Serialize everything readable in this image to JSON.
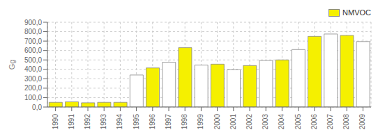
{
  "chart_data": {
    "type": "bar",
    "ylabel": "Gg",
    "categories": [
      "1990",
      "1991",
      "1992",
      "1993",
      "1994",
      "1995",
      "1996",
      "1997",
      "1998",
      "1999",
      "2000",
      "2001",
      "2002",
      "2003",
      "2004",
      "2005",
      "2006",
      "2007",
      "2008",
      "2009"
    ],
    "series": [
      {
        "name": "NMVOC",
        "color": "#f5f000",
        "values": [
          50,
          55,
          45,
          50,
          50,
          340,
          415,
          475,
          630,
          445,
          455,
          395,
          440,
          495,
          500,
          610,
          750,
          775,
          760,
          695
        ],
        "colors": [
          "#f5f000",
          "#f5f000",
          "#f5f000",
          "#f5f000",
          "#f5f000",
          "#ffffff",
          "#f5f000",
          "#ffffff",
          "#f5f000",
          "#ffffff",
          "#f5f000",
          "#ffffff",
          "#f5f000",
          "#ffffff",
          "#f5f000",
          "#ffffff",
          "#f5f000",
          "#ffffff",
          "#f5f000",
          "#ffffff"
        ]
      }
    ],
    "ylim": [
      0,
      900
    ],
    "yticks": [
      {
        "value": 0,
        "label": "0,0"
      },
      {
        "value": 100,
        "label": "100,0"
      },
      {
        "value": 200,
        "label": "200,0"
      },
      {
        "value": 300,
        "label": "300,0"
      },
      {
        "value": 400,
        "label": "400,0"
      },
      {
        "value": 500,
        "label": "500,0"
      },
      {
        "value": 600,
        "label": "600,0"
      },
      {
        "value": 700,
        "label": "700,0"
      },
      {
        "value": 800,
        "label": "800,0"
      },
      {
        "value": 900,
        "label": "900,0"
      }
    ],
    "grid": true,
    "legend": "upper right"
  }
}
